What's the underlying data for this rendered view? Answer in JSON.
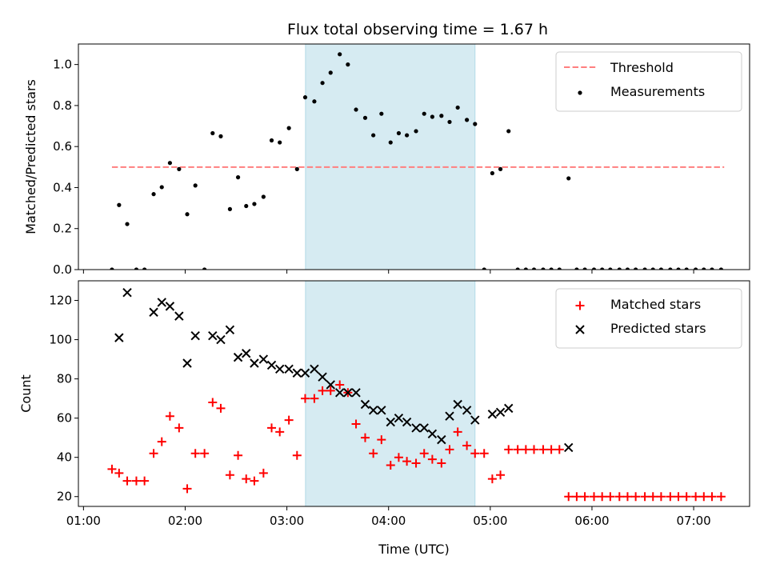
{
  "title": "Flux total observing time = 1.67 h",
  "colors": {
    "span": "#add8e6",
    "threshold": "#ff7f7f",
    "measurement": "#000000",
    "matched": "#ff0000",
    "predicted": "#000000"
  },
  "chart_data": [
    {
      "type": "scatter",
      "ylabel": "Matched/Predicted stars",
      "ylim": [
        0,
        1.1
      ],
      "xlim": [
        0.95,
        7.55
      ],
      "yticks": [
        {
          "v": 0.0,
          "label": "0.0"
        },
        {
          "v": 0.2,
          "label": "0.2"
        },
        {
          "v": 0.4,
          "label": "0.4"
        },
        {
          "v": 0.6,
          "label": "0.6"
        },
        {
          "v": 0.8,
          "label": "0.8"
        },
        {
          "v": 1.0,
          "label": "1.0"
        }
      ],
      "span": [
        3.183,
        4.85
      ],
      "threshold": {
        "name": "Threshold",
        "y": 0.5,
        "x_range": [
          1.28,
          7.3
        ]
      },
      "legend": {
        "placement": "top-right"
      },
      "series": [
        {
          "name": "Measurements",
          "marker": "dot",
          "x": [
            1.28,
            1.35,
            1.43,
            1.52,
            1.6,
            1.69,
            1.77,
            1.85,
            1.94,
            2.02,
            2.1,
            2.19,
            2.27,
            2.35,
            2.44,
            2.52,
            2.6,
            2.68,
            2.77,
            2.85,
            2.93,
            3.02,
            3.1,
            3.18,
            3.27,
            3.35,
            3.43,
            3.52,
            3.6,
            3.68,
            3.77,
            3.85,
            3.93,
            4.02,
            4.1,
            4.18,
            4.27,
            4.35,
            4.43,
            4.52,
            4.6,
            4.68,
            4.77,
            4.85,
            4.94,
            5.02,
            5.1,
            5.18,
            5.27,
            5.35,
            5.43,
            5.52,
            5.6,
            5.68,
            5.77,
            5.85,
            5.93,
            6.02,
            6.1,
            6.18,
            6.27,
            6.35,
            6.43,
            6.52,
            6.6,
            6.68,
            6.77,
            6.85,
            6.93,
            7.02,
            7.1,
            7.18,
            7.27
          ],
          "y": [
            0,
            0.315,
            0.222,
            0,
            0,
            0.368,
            0.402,
            0.52,
            0.49,
            0.27,
            0.41,
            0,
            0.665,
            0.65,
            0.295,
            0.45,
            0.31,
            0.32,
            0.355,
            0.63,
            0.62,
            0.69,
            0.49,
            0.84,
            0.82,
            0.91,
            0.96,
            1.05,
            1.0,
            0.78,
            0.74,
            0.655,
            0.76,
            0.62,
            0.665,
            0.655,
            0.675,
            0.76,
            0.745,
            0.75,
            0.72,
            0.79,
            0.73,
            0.71,
            0,
            0.47,
            0.49,
            0.675,
            0,
            0,
            0,
            0,
            0,
            0,
            0.445,
            0,
            0,
            0,
            0,
            0,
            0,
            0,
            0,
            0,
            0,
            0,
            0,
            0,
            0,
            0,
            0,
            0,
            0
          ]
        }
      ]
    },
    {
      "type": "scatter",
      "xlabel": "Time (UTC)",
      "ylabel": "Count",
      "ylim": [
        15,
        130
      ],
      "xlim": [
        0.95,
        7.55
      ],
      "yticks": [
        {
          "v": 20,
          "label": "20"
        },
        {
          "v": 40,
          "label": "40"
        },
        {
          "v": 60,
          "label": "60"
        },
        {
          "v": 80,
          "label": "80"
        },
        {
          "v": 100,
          "label": "100"
        },
        {
          "v": 120,
          "label": "120"
        }
      ],
      "xticks": [
        {
          "v": 1,
          "label": "01:00"
        },
        {
          "v": 2,
          "label": "02:00"
        },
        {
          "v": 3,
          "label": "03:00"
        },
        {
          "v": 4,
          "label": "04:00"
        },
        {
          "v": 5,
          "label": "05:00"
        },
        {
          "v": 6,
          "label": "06:00"
        },
        {
          "v": 7,
          "label": "07:00"
        }
      ],
      "span": [
        3.183,
        4.85
      ],
      "legend": {
        "placement": "top-right"
      },
      "series": [
        {
          "name": "Matched stars",
          "marker": "plus",
          "x": [
            1.28,
            1.35,
            1.43,
            1.52,
            1.6,
            1.69,
            1.77,
            1.85,
            1.94,
            2.02,
            2.1,
            2.19,
            2.27,
            2.35,
            2.44,
            2.52,
            2.6,
            2.68,
            2.77,
            2.85,
            2.93,
            3.02,
            3.1,
            3.18,
            3.27,
            3.35,
            3.43,
            3.52,
            3.6,
            3.68,
            3.77,
            3.85,
            3.93,
            4.02,
            4.1,
            4.18,
            4.27,
            4.35,
            4.43,
            4.52,
            4.6,
            4.68,
            4.77,
            4.85,
            4.94,
            5.02,
            5.1,
            5.18,
            5.27,
            5.35,
            5.43,
            5.52,
            5.6,
            5.68,
            5.77,
            5.85,
            5.93,
            6.02,
            6.1,
            6.18,
            6.27,
            6.35,
            6.43,
            6.52,
            6.6,
            6.68,
            6.77,
            6.85,
            6.93,
            7.02,
            7.1,
            7.18,
            7.27
          ],
          "y": [
            34,
            32,
            28,
            28,
            28,
            42,
            48,
            61,
            55,
            24,
            42,
            42,
            68,
            65,
            31,
            41,
            29,
            28,
            32,
            55,
            53,
            59,
            41,
            70,
            70,
            74,
            74,
            77,
            73,
            57,
            50,
            42,
            49,
            36,
            40,
            38,
            37,
            42,
            39,
            37,
            44,
            53,
            46,
            42,
            42,
            29,
            31,
            44,
            44,
            44,
            44,
            44,
            44,
            44,
            20,
            20,
            20,
            20,
            20,
            20,
            20,
            20,
            20,
            20,
            20,
            20,
            20,
            20,
            20,
            20,
            20,
            20,
            20
          ]
        },
        {
          "name": "Predicted stars",
          "marker": "x",
          "x": [
            1.35,
            1.43,
            1.69,
            1.77,
            1.85,
            1.94,
            2.02,
            2.1,
            2.27,
            2.35,
            2.44,
            2.52,
            2.6,
            2.68,
            2.77,
            2.85,
            2.93,
            3.02,
            3.1,
            3.18,
            3.27,
            3.35,
            3.43,
            3.52,
            3.6,
            3.68,
            3.77,
            3.85,
            3.93,
            4.02,
            4.1,
            4.18,
            4.27,
            4.35,
            4.43,
            4.52,
            4.6,
            4.68,
            4.77,
            4.85,
            5.02,
            5.1,
            5.18,
            5.77
          ],
          "y": [
            101,
            124,
            114,
            119,
            117,
            112,
            88,
            102,
            102,
            100,
            105,
            91,
            93,
            88,
            90,
            87,
            85,
            85,
            83,
            83,
            85,
            81,
            77,
            73,
            73,
            73,
            67,
            64,
            64,
            58,
            60,
            58,
            55,
            55,
            52,
            49,
            61,
            67,
            64,
            59,
            62,
            63,
            65,
            45
          ]
        }
      ]
    }
  ]
}
